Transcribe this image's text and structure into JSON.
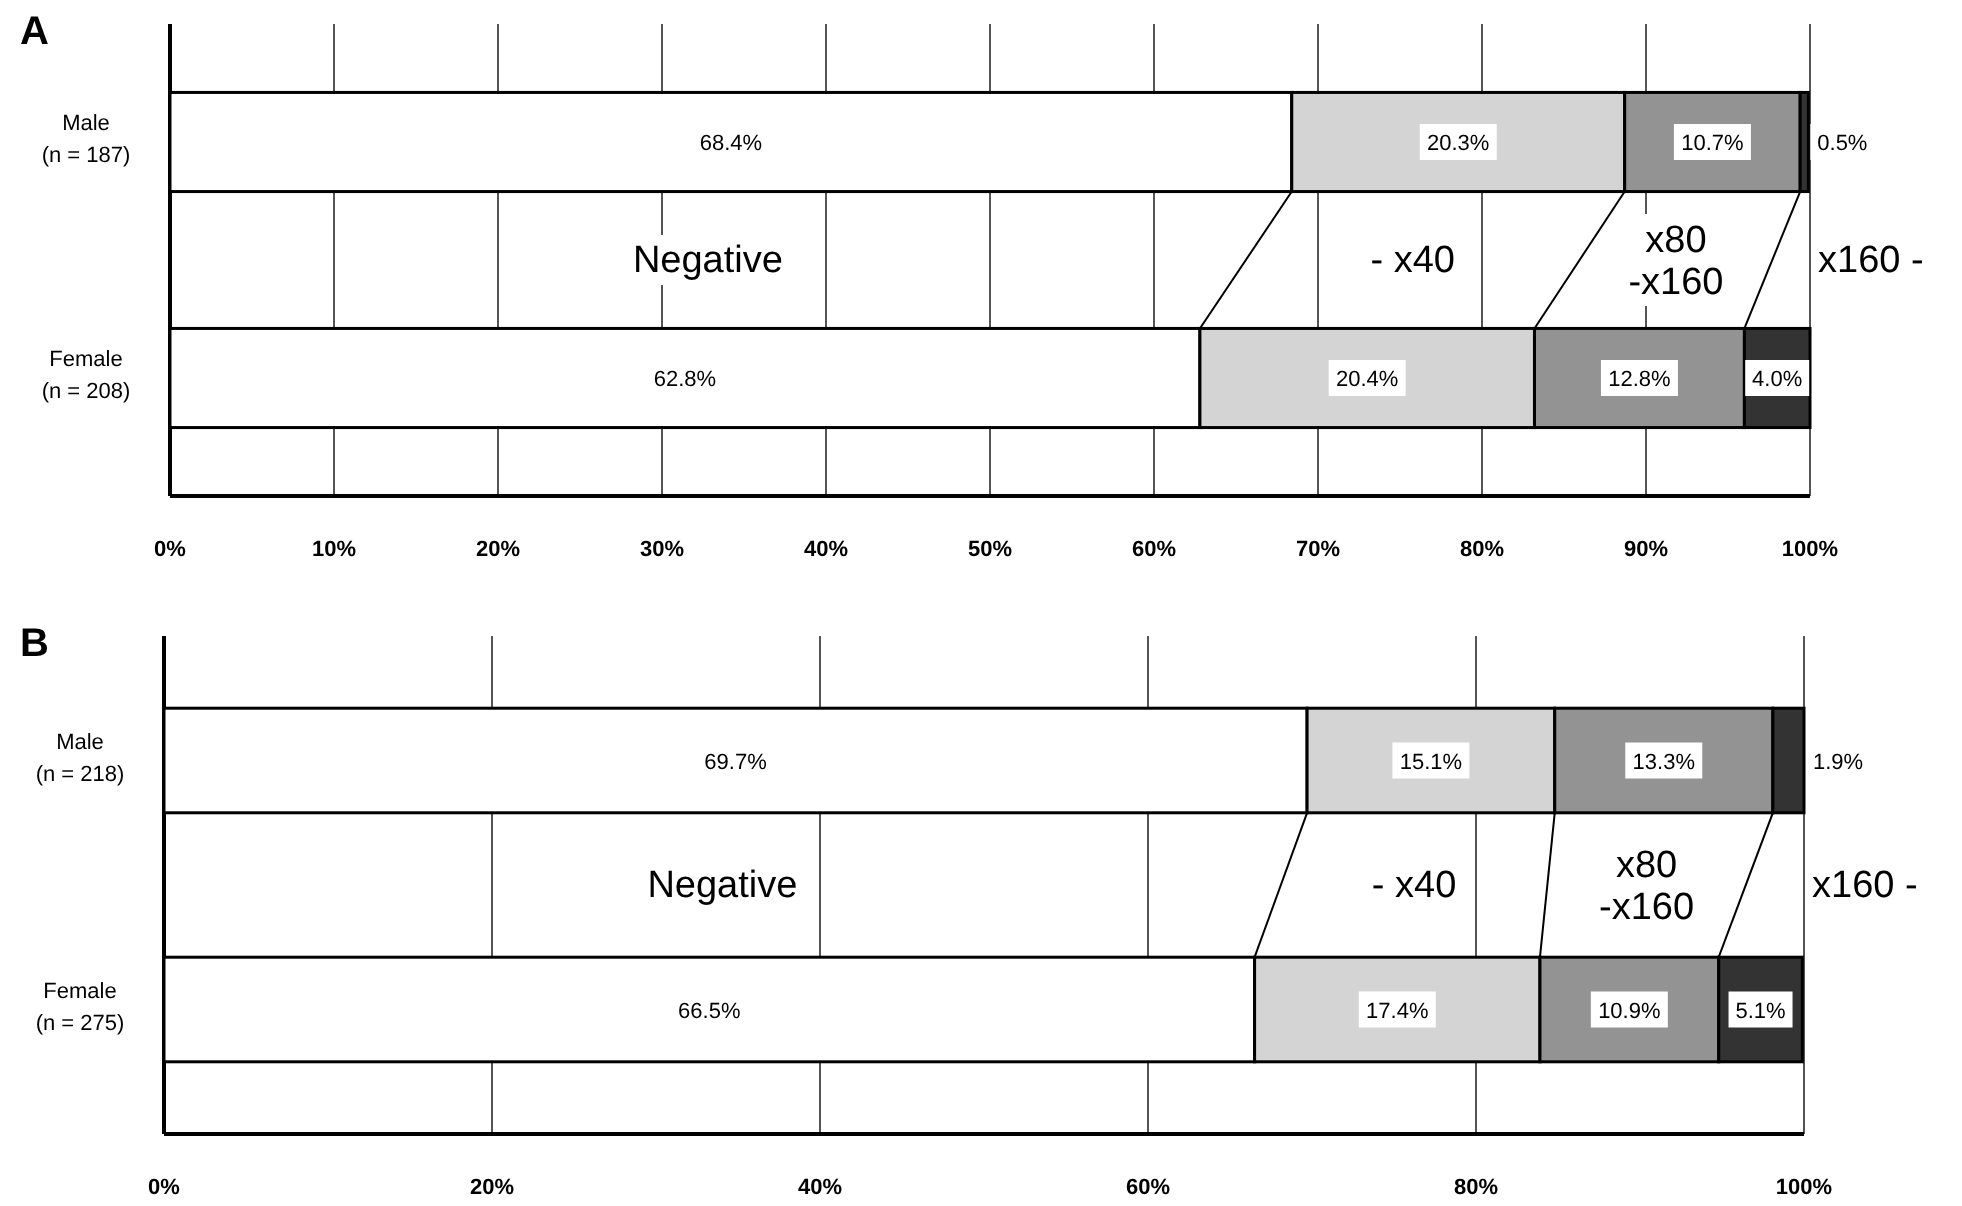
{
  "chart_data": [
    {
      "type": "bar",
      "title": "A",
      "orientation": "horizontal",
      "stacked": true,
      "categories": [
        "Male\n(n = 187)",
        "Female\n(n = 208)"
      ],
      "xlim": [
        0,
        100
      ],
      "xticks": [
        {
          "value": 0,
          "label": "0%"
        },
        {
          "value": 10,
          "label": "10%"
        },
        {
          "value": 20,
          "label": "20%"
        },
        {
          "value": 30,
          "label": "30%"
        },
        {
          "value": 40,
          "label": "40%"
        },
        {
          "value": 50,
          "label": "50%"
        },
        {
          "value": 60,
          "label": "60%"
        },
        {
          "value": 70,
          "label": "70%"
        },
        {
          "value": 80,
          "label": "80%"
        },
        {
          "value": 90,
          "label": "90%"
        },
        {
          "value": 100,
          "label": "100%"
        }
      ],
      "grid": "x",
      "legend": false,
      "data_labels": true,
      "series": [
        {
          "name": "Negative",
          "color": "#ffffff",
          "values": [
            68.4,
            62.8
          ],
          "value_labels": [
            "68.4%",
            "62.8%"
          ]
        },
        {
          "name": "- x40",
          "color": "#d4d4d4",
          "values": [
            20.3,
            20.4
          ],
          "value_labels": [
            "20.3%",
            "20.4%"
          ]
        },
        {
          "name": "x80\n-x160",
          "color": "#939393",
          "values": [
            10.7,
            12.8
          ],
          "value_labels": [
            "10.7%",
            "12.8%"
          ]
        },
        {
          "name": "x160 -",
          "color": "#333333",
          "values": [
            0.5,
            4.0
          ],
          "value_labels": [
            "0.5%",
            "4.0%"
          ]
        }
      ]
    },
    {
      "type": "bar",
      "title": "B",
      "orientation": "horizontal",
      "stacked": true,
      "categories": [
        "Male\n(n = 218)",
        "Female\n(n = 275)"
      ],
      "xlim": [
        0,
        100
      ],
      "xticks": [
        {
          "value": 0,
          "label": "0%"
        },
        {
          "value": 20,
          "label": "20%"
        },
        {
          "value": 40,
          "label": "40%"
        },
        {
          "value": 60,
          "label": "60%"
        },
        {
          "value": 80,
          "label": "80%"
        },
        {
          "value": 100,
          "label": "100%"
        }
      ],
      "grid": "x",
      "legend": false,
      "data_labels": true,
      "series": [
        {
          "name": "Negative",
          "color": "#ffffff",
          "values": [
            69.7,
            66.5
          ],
          "value_labels": [
            "69.7%",
            "66.5%"
          ]
        },
        {
          "name": "- x40",
          "color": "#d4d4d4",
          "values": [
            15.1,
            17.4
          ],
          "value_labels": [
            "15.1%",
            "17.4%"
          ]
        },
        {
          "name": "x80\n-x160",
          "color": "#939393",
          "values": [
            13.3,
            10.9
          ],
          "value_labels": [
            "13.3%",
            "10.9%"
          ]
        },
        {
          "name": "x160 -",
          "color": "#333333",
          "values": [
            1.9,
            5.1
          ],
          "value_labels": [
            "1.9%",
            "5.1%"
          ]
        }
      ]
    }
  ]
}
